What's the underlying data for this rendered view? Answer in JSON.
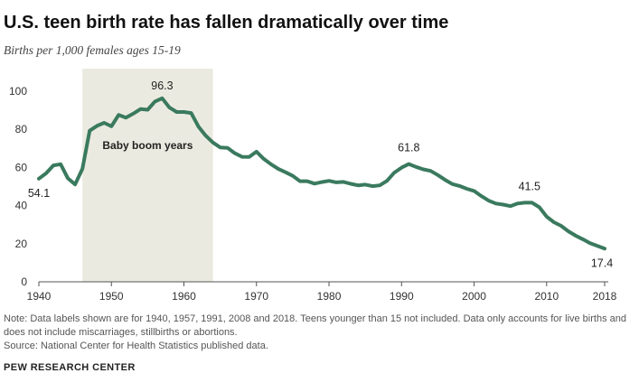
{
  "title": "U.S. teen birth rate has fallen dramatically over time",
  "subtitle": "Births per 1,000 females ages 15-19",
  "note": "Note: Data labels shown are for 1940, 1957, 1991, 2008 and 2018. Teens younger than 15 not included. Data only accounts for live births and does not include miscarriages, stillbirths or abortions.",
  "source": "Source: National Center for Health Statistics published data.",
  "brand": "PEW RESEARCH CENTER",
  "colors": {
    "line": "#3a7a5e",
    "shade": "#ebeae0",
    "axis": "#555555"
  },
  "chart_data": {
    "type": "line",
    "title": "U.S. teen birth rate has fallen dramatically over time",
    "subtitle": "Births per 1,000 females ages 15-19",
    "xlabel": "",
    "ylabel": "",
    "xlim": [
      1940,
      2018
    ],
    "ylim": [
      0,
      100
    ],
    "x_ticks": [
      1940,
      1950,
      1960,
      1970,
      1980,
      1990,
      2000,
      2010,
      2018
    ],
    "y_ticks": [
      0,
      20,
      40,
      60,
      80,
      100
    ],
    "grid": false,
    "shaded_region": {
      "label": "Baby boom years",
      "x_start": 1946,
      "x_end": 1964
    },
    "series": [
      {
        "x": [
          1940,
          1941,
          1942,
          1943,
          1944,
          1945,
          1946,
          1947,
          1948,
          1949,
          1950,
          1951,
          1952,
          1953,
          1954,
          1955,
          1956,
          1957,
          1958,
          1959,
          1960,
          1961,
          1962,
          1963,
          1964,
          1965,
          1966,
          1967,
          1968,
          1969,
          1970,
          1971,
          1972,
          1973,
          1974,
          1975,
          1976,
          1977,
          1978,
          1979,
          1980,
          1981,
          1982,
          1983,
          1984,
          1985,
          1986,
          1987,
          1988,
          1989,
          1990,
          1991,
          1992,
          1993,
          1994,
          1995,
          1996,
          1997,
          1998,
          1999,
          2000,
          2001,
          2002,
          2003,
          2004,
          2005,
          2006,
          2007,
          2008,
          2009,
          2010,
          2011,
          2012,
          2013,
          2014,
          2015,
          2016,
          2017,
          2018
        ],
        "values": [
          54.1,
          56.9,
          61.1,
          61.7,
          54.3,
          51.1,
          59.3,
          79.3,
          81.8,
          83.4,
          81.6,
          87.6,
          86.1,
          88.2,
          90.6,
          90.3,
          94.6,
          96.3,
          91.4,
          89.1,
          89.1,
          88.6,
          81.4,
          76.7,
          73.1,
          70.5,
          70.3,
          67.5,
          65.6,
          65.5,
          68.3,
          64.5,
          61.7,
          59.3,
          57.5,
          55.6,
          52.8,
          52.8,
          51.5,
          52.3,
          53.0,
          52.2,
          52.4,
          51.4,
          50.6,
          51.0,
          50.2,
          50.6,
          53.0,
          57.3,
          59.9,
          61.8,
          60.3,
          59.0,
          58.2,
          56.0,
          53.5,
          51.3,
          50.3,
          48.8,
          47.7,
          45.0,
          42.6,
          41.1,
          40.5,
          39.7,
          41.1,
          41.5,
          41.5,
          39.1,
          34.2,
          31.3,
          29.4,
          26.5,
          24.2,
          22.3,
          20.3,
          18.8,
          17.4
        ]
      }
    ],
    "data_labels": [
      {
        "x": 1940,
        "value": 54.1,
        "text": "54.1"
      },
      {
        "x": 1957,
        "value": 96.3,
        "text": "96.3"
      },
      {
        "x": 1991,
        "value": 61.8,
        "text": "61.8"
      },
      {
        "x": 2008,
        "value": 41.5,
        "text": "41.5"
      },
      {
        "x": 2018,
        "value": 17.4,
        "text": "17.4"
      }
    ]
  }
}
